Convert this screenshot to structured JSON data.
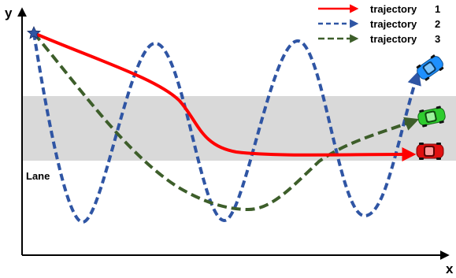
{
  "axes": {
    "x_label": "x",
    "y_label": "y"
  },
  "lane": {
    "label": "Lane"
  },
  "legend": [
    {
      "label": "trajectory",
      "number": "1",
      "color": "#ff0000",
      "style": "solid"
    },
    {
      "label": "trajectory",
      "number": "2",
      "color": "#2f55a4",
      "style": "dashed"
    },
    {
      "label": "trajectory",
      "number": "3",
      "color": "#3d5e2a",
      "style": "dashed"
    }
  ],
  "colors": {
    "lane_fill": "#d9d9d9",
    "trajectory_1": "#ff0000",
    "trajectory_2": "#2f55a4",
    "trajectory_3": "#3d5e2a",
    "start_marker": "#2f55a4",
    "car_blue": "#1e90ff",
    "car_green": "#2ecc2e",
    "car_red": "#e01010"
  },
  "icons": {
    "start": "star-icon",
    "cars": [
      "blue-car-icon",
      "green-car-icon",
      "red-car-icon"
    ]
  }
}
